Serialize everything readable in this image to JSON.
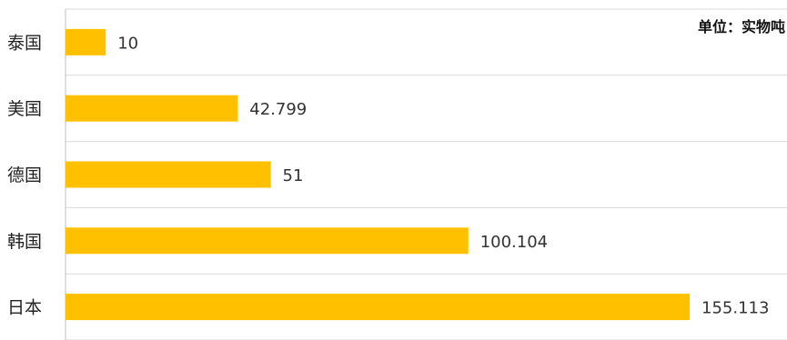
{
  "unit_label": "单位：实物吨",
  "chart_data": {
    "type": "bar",
    "orientation": "horizontal",
    "categories": [
      "泰国",
      "美国",
      "德国",
      "韩国",
      "日本"
    ],
    "values": [
      10,
      42.799,
      51,
      100.104,
      155.113
    ],
    "value_labels": [
      "10",
      "42.799",
      "51",
      "100.104",
      "155.113"
    ],
    "bar_color": "#FFC000",
    "grid_color": "#D9D9D9",
    "axis_color": "#BFBFBF",
    "grid": true,
    "legend": false
  }
}
